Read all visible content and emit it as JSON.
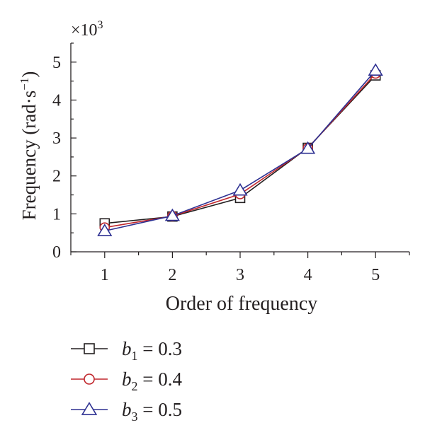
{
  "chart_data": {
    "type": "line",
    "xlabel": "Order of frequency",
    "ylabel": "Frequency (rad·s",
    "ylabel_sup": "−1",
    "ylabel_close": ")",
    "multiplier": "×10",
    "multiplier_exp": "3",
    "x": [
      1,
      2,
      3,
      4,
      5
    ],
    "x_ticks": [
      "1",
      "2",
      "3",
      "4",
      "5"
    ],
    "y_ticks": [
      "0",
      "1",
      "2",
      "3",
      "4",
      "5"
    ],
    "xlim": [
      0.5,
      5.5
    ],
    "ylim": [
      0,
      5.5
    ],
    "grid": false,
    "legend_position": "bottom-left",
    "series": [
      {
        "name": "b1 = 0.3",
        "sym": "b",
        "sub": "1",
        "eq": " = 0.3",
        "marker": "square",
        "color": "#231f20",
        "values": [
          0.75,
          0.93,
          1.42,
          2.74,
          4.65
        ]
      },
      {
        "name": "b2 = 0.4",
        "sym": "b",
        "sub": "2",
        "eq": " = 0.4",
        "marker": "circle",
        "color": "#c1272d",
        "values": [
          0.64,
          0.94,
          1.52,
          2.73,
          4.7
        ]
      },
      {
        "name": "b3 = 0.5",
        "sym": "b",
        "sub": "3",
        "eq": " = 0.5",
        "marker": "triangle",
        "color": "#2e3192",
        "values": [
          0.55,
          0.95,
          1.62,
          2.72,
          4.78
        ]
      }
    ]
  }
}
